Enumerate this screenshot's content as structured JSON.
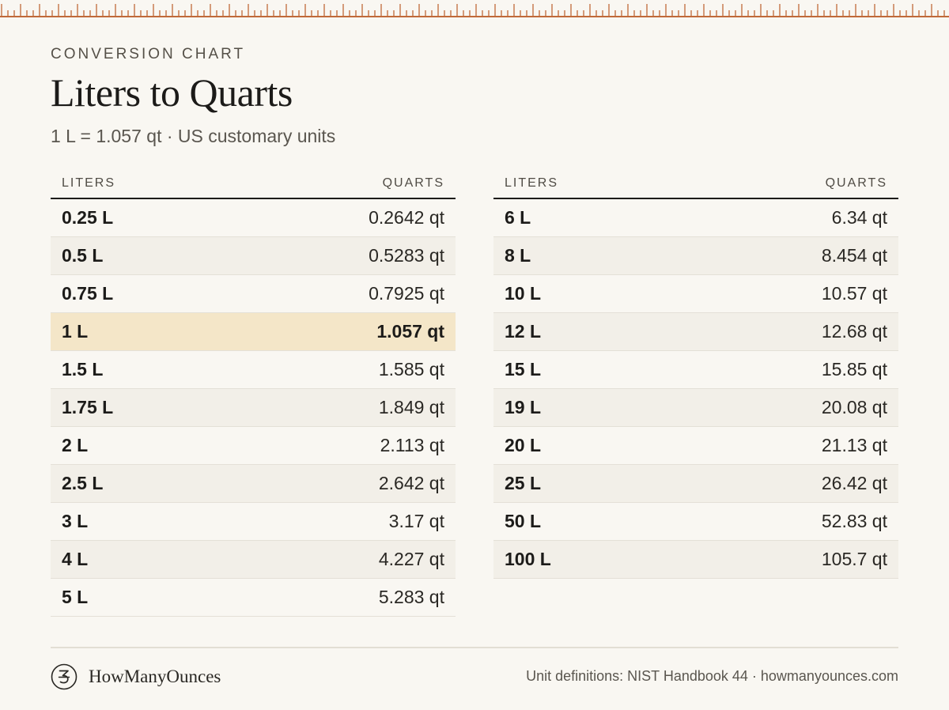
{
  "header": {
    "eyebrow": "CONVERSION CHART",
    "title": "Liters to Quarts",
    "subtitle": "1 L = 1.057 qt · US customary units"
  },
  "colors": {
    "ruler": "#c06a3a",
    "highlight": "#f4e6c8",
    "stripe": "#f2efe8",
    "background": "#f9f7f2"
  },
  "table": {
    "headers": {
      "liters": "LITERS",
      "quarts": "QUARTS"
    },
    "left_rows": [
      {
        "liters": "0.25 L",
        "quarts": "0.2642 qt"
      },
      {
        "liters": "0.5 L",
        "quarts": "0.5283 qt"
      },
      {
        "liters": "0.75 L",
        "quarts": "0.7925 qt"
      },
      {
        "liters": "1 L",
        "quarts": "1.057 qt",
        "highlight": true
      },
      {
        "liters": "1.5 L",
        "quarts": "1.585 qt"
      },
      {
        "liters": "1.75 L",
        "quarts": "1.849 qt"
      },
      {
        "liters": "2 L",
        "quarts": "2.113 qt"
      },
      {
        "liters": "2.5 L",
        "quarts": "2.642 qt"
      },
      {
        "liters": "3 L",
        "quarts": "3.17 qt"
      },
      {
        "liters": "4 L",
        "quarts": "4.227 qt"
      },
      {
        "liters": "5 L",
        "quarts": "5.283 qt"
      }
    ],
    "right_rows": [
      {
        "liters": "6 L",
        "quarts": "6.34 qt"
      },
      {
        "liters": "8 L",
        "quarts": "8.454 qt"
      },
      {
        "liters": "10 L",
        "quarts": "10.57 qt"
      },
      {
        "liters": "12 L",
        "quarts": "12.68 qt"
      },
      {
        "liters": "15 L",
        "quarts": "15.85 qt"
      },
      {
        "liters": "19 L",
        "quarts": "20.08 qt"
      },
      {
        "liters": "20 L",
        "quarts": "21.13 qt"
      },
      {
        "liters": "25 L",
        "quarts": "26.42 qt"
      },
      {
        "liters": "50 L",
        "quarts": "52.83 qt"
      },
      {
        "liters": "100 L",
        "quarts": "105.7 qt"
      }
    ]
  },
  "footer": {
    "brand_icon": "brand-logo-icon",
    "brand_name": "HowManyOunces",
    "source": "Unit definitions: NIST Handbook 44 · howmanyounces.com"
  }
}
